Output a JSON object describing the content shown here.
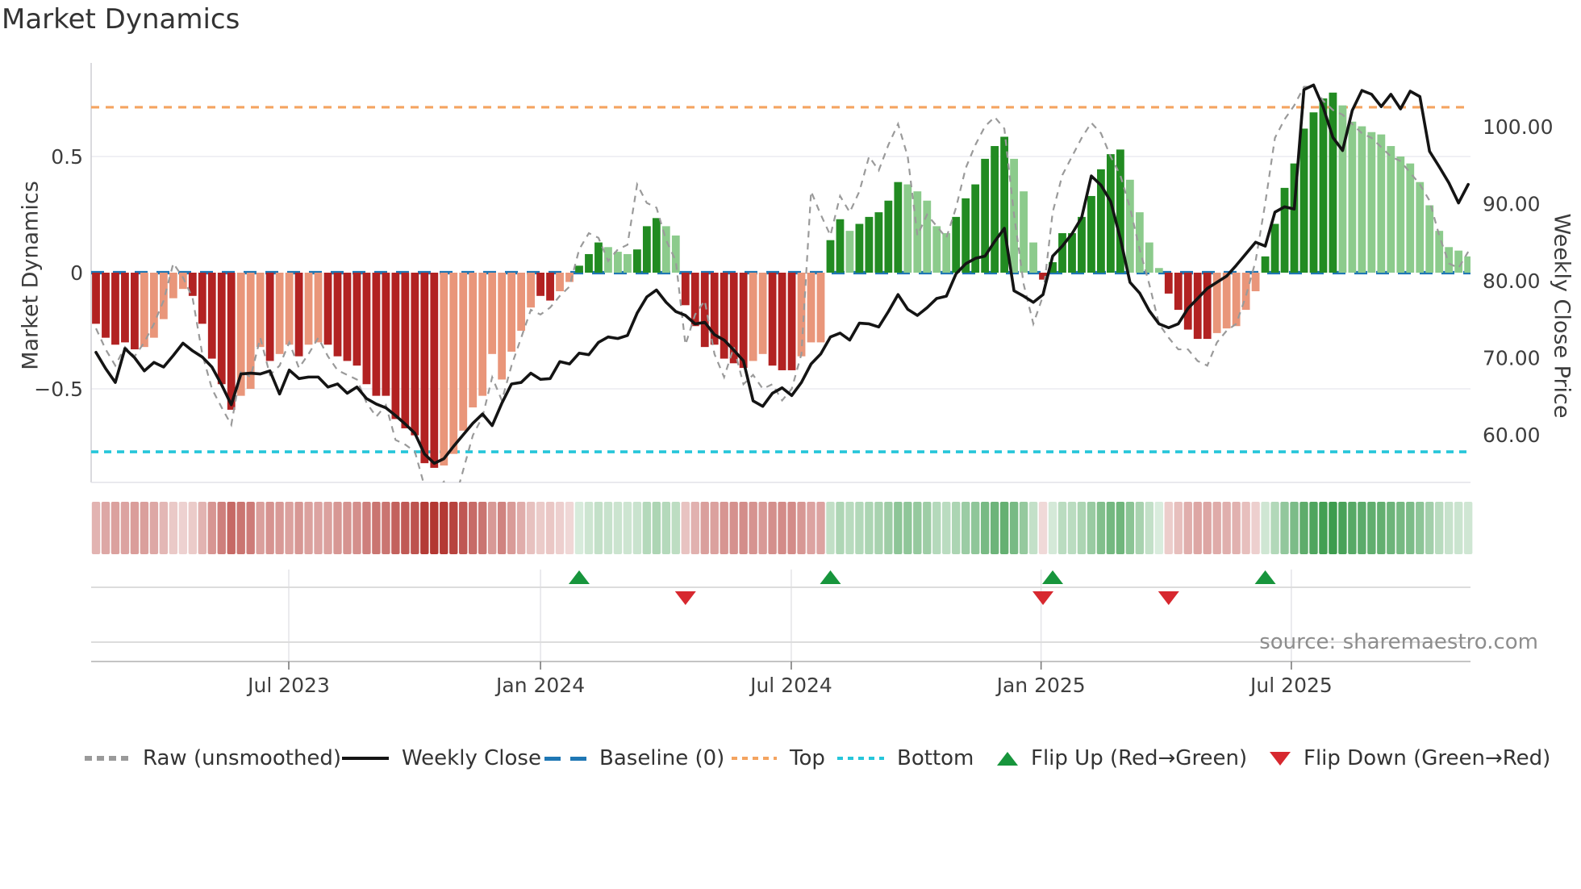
{
  "title": "Market Dynamics",
  "left_axis_label": "Market Dynamics",
  "right_axis_label": "Weekly Close Price",
  "source_text": "source: sharemaestro.com",
  "legend": [
    {
      "label": "Raw (unsmoothed)",
      "swatch": "dash-gray"
    },
    {
      "label": "Weekly Close",
      "swatch": "solid-black"
    },
    {
      "label": "Baseline (0)",
      "swatch": "dash-blue"
    },
    {
      "label": "Top",
      "swatch": "dot-orange"
    },
    {
      "label": "Bottom",
      "swatch": "dot-cyan"
    },
    {
      "label": "Flip Up (Red→Green)",
      "swatch": "tri-up"
    },
    {
      "label": "Flip Down (Green→Red)",
      "swatch": "tri-down"
    }
  ],
  "colors": {
    "bar_neg_strong": "#b22222",
    "bar_neg_weak": "#e9967a",
    "bar_pos_strong": "#228b22",
    "bar_pos_weak": "#8ccb8c",
    "price_line": "#141414",
    "raw_line": "#9a9a9a",
    "baseline": "#1f77b4",
    "top_line": "#f4a460",
    "bottom_line": "#26c6da",
    "flip_up": "#17953c",
    "flip_down": "#d7282f",
    "heat_red": [
      178,
      53,
      48
    ],
    "heat_green": [
      46,
      148,
      64
    ],
    "grid": "#ececf1",
    "spine": "#cdcdd4",
    "panel_grid": "#dcdcdc",
    "panel_axis": "#c4c4c4",
    "tick_text": "#3d3d3d",
    "muted_text": "#8d8d8d"
  },
  "chart_data": {
    "type": "combo (weekly bars + lines + heat strip + flip markers)",
    "left_axis": {
      "ticks": [
        0.5,
        0,
        -0.5
      ],
      "tick_labels": [
        "0.5",
        "0",
        "−0.5"
      ],
      "range_visible": [
        -0.9,
        0.9
      ]
    },
    "right_axis": {
      "ticks": [
        100,
        90,
        80,
        70,
        60
      ],
      "tick_labels": [
        "100.00",
        "90.00",
        "80.00",
        "70.00",
        "60.00"
      ]
    },
    "x_ticks": {
      "labels": [
        "Jul 2023",
        "Jan 2024",
        "Jul 2024",
        "Jan 2025",
        "Jul 2025"
      ],
      "week_index": [
        19.95,
        46.0,
        71.95,
        97.8,
        123.7
      ]
    },
    "baseline_value": 0,
    "top_threshold": 0.712,
    "bottom_threshold": -0.771,
    "weeks": 143,
    "smoothed_dynamics": [
      -0.22,
      -0.28,
      -0.31,
      -0.3,
      -0.33,
      -0.32,
      -0.28,
      -0.2,
      -0.11,
      -0.07,
      -0.1,
      -0.22,
      -0.37,
      -0.48,
      -0.59,
      -0.53,
      -0.5,
      -0.32,
      -0.38,
      -0.35,
      -0.31,
      -0.36,
      -0.31,
      -0.3,
      -0.31,
      -0.36,
      -0.38,
      -0.4,
      -0.48,
      -0.53,
      -0.53,
      -0.63,
      -0.67,
      -0.7,
      -0.82,
      -0.84,
      -0.83,
      -0.78,
      -0.68,
      -0.58,
      -0.53,
      -0.35,
      -0.46,
      -0.34,
      -0.25,
      -0.15,
      -0.1,
      -0.12,
      -0.08,
      -0.04,
      0.03,
      0.08,
      0.13,
      0.11,
      0.09,
      0.08,
      0.1,
      0.2,
      0.235,
      0.2,
      0.16,
      -0.14,
      -0.23,
      -0.32,
      -0.31,
      -0.37,
      -0.39,
      -0.41,
      -0.38,
      -0.35,
      -0.4,
      -0.42,
      -0.42,
      -0.36,
      -0.3,
      -0.3,
      0.14,
      0.23,
      0.18,
      0.21,
      0.24,
      0.26,
      0.31,
      0.39,
      0.38,
      0.35,
      0.31,
      0.2,
      0.17,
      0.24,
      0.32,
      0.38,
      0.49,
      0.545,
      0.585,
      0.49,
      0.35,
      0.13,
      -0.03,
      0.045,
      0.17,
      0.17,
      0.24,
      0.33,
      0.445,
      0.51,
      0.53,
      0.4,
      0.26,
      0.13,
      0.02,
      -0.09,
      -0.16,
      -0.245,
      -0.285,
      -0.285,
      -0.26,
      -0.24,
      -0.23,
      -0.16,
      -0.08,
      0.07,
      0.21,
      0.365,
      0.47,
      0.62,
      0.69,
      0.75,
      0.775,
      0.72,
      0.65,
      0.63,
      0.605,
      0.595,
      0.545,
      0.5,
      0.47,
      0.39,
      0.29,
      0.18,
      0.11,
      0.095,
      0.07
    ],
    "bar_shade": "DDDDDLLLLLDDDDDLLLDLLDLLDDDDDDDDDDDDLLLLLLLLLLDDLLDDDLLLDDDLLDDDDDDDLLDDDLLLDDLDDDDDLLLLLDDDDDDLLLDDDDDDDDDLLLLDDDDDLLLLLDDDDDDDDLLLLLLLLLLLLLL",
    "raw_unsmoothed": [
      -0.24,
      -0.33,
      -0.4,
      -0.32,
      -0.36,
      -0.3,
      -0.22,
      -0.12,
      0.04,
      -0.02,
      -0.11,
      -0.35,
      -0.5,
      -0.58,
      -0.655,
      -0.42,
      -0.45,
      -0.28,
      -0.44,
      -0.4,
      -0.3,
      -0.41,
      -0.35,
      -0.28,
      -0.36,
      -0.42,
      -0.44,
      -0.46,
      -0.56,
      -0.62,
      -0.57,
      -0.72,
      -0.74,
      -0.77,
      -0.92,
      -0.95,
      -0.9,
      -1.0,
      -0.85,
      -0.7,
      -0.62,
      -0.45,
      -0.55,
      -0.4,
      -0.28,
      -0.16,
      -0.18,
      -0.15,
      -0.1,
      -0.06,
      0.1,
      0.17,
      0.15,
      0.05,
      0.1,
      0.12,
      0.38,
      0.3,
      0.28,
      0.14,
      0.05,
      -0.31,
      -0.18,
      -0.12,
      -0.35,
      -0.45,
      -0.32,
      -0.48,
      -0.44,
      -0.5,
      -0.48,
      -0.55,
      -0.5,
      -0.35,
      0.35,
      0.25,
      0.16,
      0.33,
      0.26,
      0.35,
      0.5,
      0.44,
      0.55,
      0.64,
      0.5,
      0.16,
      0.25,
      0.2,
      0.15,
      0.28,
      0.45,
      0.55,
      0.63,
      0.67,
      0.62,
      0.25,
      -0.05,
      -0.22,
      -0.1,
      0.26,
      0.42,
      0.5,
      0.58,
      0.645,
      0.6,
      0.5,
      0.42,
      0.28,
      0.1,
      -0.05,
      -0.22,
      -0.28,
      -0.33,
      -0.33,
      -0.38,
      -0.4,
      -0.3,
      -0.25,
      -0.22,
      -0.1,
      0.05,
      0.3,
      0.58,
      0.66,
      0.72,
      0.8,
      0.8,
      0.74,
      0.7,
      0.68,
      0.64,
      0.6,
      0.58,
      0.54,
      0.5,
      0.48,
      0.43,
      0.38,
      0.31,
      0.16,
      0.04,
      0.02,
      0.09
    ],
    "weekly_close": [
      70.7,
      68.6,
      66.8,
      71.2,
      70.0,
      68.3,
      69.4,
      68.8,
      70.3,
      71.9,
      70.9,
      70.1,
      68.8,
      66.5,
      63.9,
      67.9,
      68.0,
      67.9,
      68.3,
      65.3,
      68.4,
      67.3,
      67.5,
      67.5,
      66.2,
      66.6,
      65.4,
      66.2,
      64.7,
      64.0,
      63.5,
      62.5,
      61.4,
      60.2,
      57.5,
      56.3,
      56.9,
      58.5,
      60.0,
      61.5,
      62.7,
      61.2,
      64.1,
      66.6,
      66.8,
      68.0,
      67.2,
      67.3,
      69.5,
      69.2,
      70.6,
      70.4,
      72.0,
      72.7,
      72.5,
      72.9,
      75.8,
      77.9,
      78.8,
      77.2,
      76.0,
      75.5,
      74.4,
      74.6,
      73.0,
      72.3,
      71.0,
      69.6,
      64.4,
      63.7,
      65.4,
      66.1,
      65.1,
      66.8,
      69.2,
      70.5,
      72.7,
      73.2,
      72.3,
      74.5,
      74.4,
      74.0,
      76.0,
      78.2,
      76.3,
      75.5,
      76.5,
      77.7,
      78.0,
      80.9,
      82.2,
      82.9,
      83.2,
      85.1,
      86.8,
      78.7,
      78.0,
      77.2,
      78.2,
      83.2,
      84.5,
      86.1,
      88.2,
      93.6,
      92.4,
      90.3,
      85.5,
      79.8,
      78.4,
      76.1,
      74.4,
      73.9,
      74.4,
      76.4,
      77.7,
      79.0,
      79.8,
      80.6,
      82.0,
      83.5,
      85.0,
      84.5,
      88.9,
      89.6,
      89.3,
      104.8,
      105.4,
      102.5,
      98.6,
      96.9,
      102.1,
      104.7,
      104.2,
      102.6,
      104.2,
      102.3,
      104.6,
      103.9,
      96.8,
      94.8,
      92.7,
      90.1,
      92.5
    ],
    "flip_up_weeks": [
      50,
      76,
      99,
      121
    ],
    "flip_down_weeks": [
      61,
      98,
      111
    ],
    "heat_strip": "same sign/intensity as smoothed_dynamics",
    "grid": "horizontal at ±0.5 only; vertical date grid in marker panel",
    "legend_position": "bottom row"
  }
}
